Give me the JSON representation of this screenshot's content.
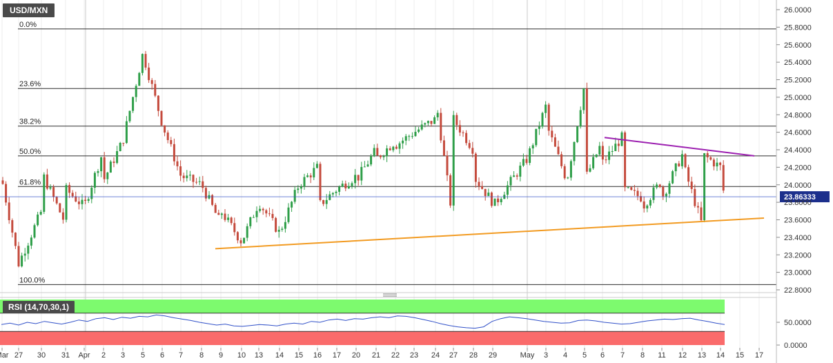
{
  "symbol": "USD/MXN",
  "rsi_label": "RSI (14,70,30,1)",
  "colors": {
    "up": "#2e9e48",
    "down": "#c44a3c",
    "support": "#f29a20",
    "resistance": "#9c1fb0",
    "rsi_line": "#2f4fc8",
    "overbought_fill": "#7dfa6e",
    "oversold_fill": "#fa6b6b"
  },
  "chart_data": [
    {
      "type": "candlestick",
      "title": "USD/MXN",
      "ylim": [
        22.8,
        26.0
      ],
      "y_ticks": [
        "26.0000",
        "25.8000",
        "25.6000",
        "25.4000",
        "25.2000",
        "25.0000",
        "24.8000",
        "24.6000",
        "24.4000",
        "24.2000",
        "24.0000",
        "23.8000",
        "23.6000",
        "23.4000",
        "23.2000",
        "23.0000",
        "22.8000"
      ],
      "x_ticks": [
        "Mar",
        "27",
        "30",
        "31",
        "Apr",
        "2",
        "3",
        "5",
        "6",
        "7",
        "8",
        "9",
        "10",
        "13",
        "14",
        "15",
        "16",
        "17",
        "20",
        "21",
        "22",
        "23",
        "24",
        "27",
        "28",
        "29",
        "May",
        "3",
        "4",
        "5",
        "6",
        "7",
        "8",
        "11",
        "12",
        "13",
        "14",
        "15",
        "17"
      ],
      "last_price": 23.86333,
      "last_price_label": "23.86333",
      "fibonacci_levels": [
        {
          "label": "0.0%",
          "value": 25.78
        },
        {
          "label": "23.6%",
          "value": 25.1
        },
        {
          "label": "38.2%",
          "value": 24.67
        },
        {
          "label": "50.0%",
          "value": 24.33
        },
        {
          "label": "61.8%",
          "value": 23.98
        },
        {
          "label": "100.0%",
          "value": 22.86
        }
      ],
      "trendlines": [
        {
          "name": "support",
          "from": {
            "x": "9",
            "y": 23.27
          },
          "to": {
            "x": "15",
            "y": 23.62
          }
        },
        {
          "name": "resistance",
          "from": {
            "x": "6",
            "y": 24.54
          },
          "to": {
            "x": "14",
            "y": 24.33
          }
        }
      ],
      "close_path": [
        {
          "x": "Mar",
          "y": 24.05
        },
        {
          "x": "27",
          "y": 23.1
        },
        {
          "x": "27",
          "y": 23.55
        },
        {
          "x": "30",
          "y": 23.7
        },
        {
          "x": "30",
          "y": 24.15
        },
        {
          "x": "31",
          "y": 23.55
        },
        {
          "x": "31",
          "y": 23.95
        },
        {
          "x": "Apr",
          "y": 23.75
        },
        {
          "x": "2",
          "y": 24.4
        },
        {
          "x": "2",
          "y": 24.05
        },
        {
          "x": "3",
          "y": 24.5
        },
        {
          "x": "3",
          "y": 24.9
        },
        {
          "x": "5",
          "y": 25.5
        },
        {
          "x": "5",
          "y": 25.15
        },
        {
          "x": "6",
          "y": 24.7
        },
        {
          "x": "6",
          "y": 24.5
        },
        {
          "x": "7",
          "y": 24.1
        },
        {
          "x": "7",
          "y": 24.55
        },
        {
          "x": "8",
          "y": 24.0
        },
        {
          "x": "8",
          "y": 23.85
        },
        {
          "x": "9",
          "y": 23.55
        },
        {
          "x": "9",
          "y": 23.7
        },
        {
          "x": "10",
          "y": 23.35
        },
        {
          "x": "13",
          "y": 23.8
        },
        {
          "x": "13",
          "y": 23.55
        },
        {
          "x": "14",
          "y": 23.45
        },
        {
          "x": "15",
          "y": 24.0
        },
        {
          "x": "15",
          "y": 24.35
        },
        {
          "x": "16",
          "y": 24.2
        },
        {
          "x": "16",
          "y": 23.75
        },
        {
          "x": "17",
          "y": 23.95
        },
        {
          "x": "20",
          "y": 24.1
        },
        {
          "x": "20",
          "y": 24.05
        },
        {
          "x": "21",
          "y": 24.4
        },
        {
          "x": "21",
          "y": 24.3
        },
        {
          "x": "22",
          "y": 24.5
        },
        {
          "x": "22",
          "y": 24.45
        },
        {
          "x": "23",
          "y": 24.6
        },
        {
          "x": "24",
          "y": 24.75
        },
        {
          "x": "24",
          "y": 25.0
        },
        {
          "x": "27",
          "y": 24.9
        },
        {
          "x": "27",
          "y": 24.75
        },
        {
          "x": "28",
          "y": 24.4
        },
        {
          "x": "28",
          "y": 24.1
        },
        {
          "x": "29",
          "y": 23.8
        },
        {
          "x": "29",
          "y": 23.75
        },
        {
          "x": "May",
          "y": 24.3
        },
        {
          "x": "3",
          "y": 24.75
        },
        {
          "x": "3",
          "y": 24.7
        },
        {
          "x": "4",
          "y": 24.1
        },
        {
          "x": "4",
          "y": 23.95
        },
        {
          "x": "5",
          "y": 23.85
        },
        {
          "x": "5",
          "y": 24.05
        },
        {
          "x": "6",
          "y": 24.45
        },
        {
          "x": "6",
          "y": 24.25
        },
        {
          "x": "7",
          "y": 24.0
        },
        {
          "x": "7",
          "y": 23.95
        },
        {
          "x": "8",
          "y": 23.6
        },
        {
          "x": "8",
          "y": 23.75
        },
        {
          "x": "11",
          "y": 24.05
        },
        {
          "x": "11",
          "y": 23.85
        },
        {
          "x": "12",
          "y": 24.35
        },
        {
          "x": "12",
          "y": 24.25
        },
        {
          "x": "13",
          "y": 24.1
        },
        {
          "x": "13",
          "y": 24.35
        },
        {
          "x": "14",
          "y": 24.2
        },
        {
          "x": "14",
          "y": 23.86
        }
      ]
    },
    {
      "type": "line",
      "title": "RSI (14,70,30,1)",
      "ylim": [
        0,
        100
      ],
      "y_ticks": [
        "50.0000",
        "0.0000"
      ],
      "overbought": 70,
      "oversold": 30,
      "series": [
        {
          "values": [
            45,
            48,
            44,
            50,
            47,
            52,
            49,
            46,
            50,
            55,
            52,
            58,
            60,
            56,
            61,
            59,
            63,
            62,
            66,
            64,
            60,
            57,
            54,
            50,
            47,
            44,
            46,
            42,
            41,
            43,
            45,
            44,
            42,
            46,
            48,
            46,
            52,
            50,
            55,
            57,
            54,
            58,
            57,
            60,
            62,
            60,
            64,
            63,
            60,
            56,
            52,
            47,
            43,
            40,
            38,
            37,
            40,
            52,
            58,
            62,
            60,
            58,
            55,
            52,
            50,
            48,
            49,
            54,
            55,
            53,
            50,
            48,
            46,
            47,
            50,
            53,
            55,
            57,
            56,
            58,
            59,
            55,
            52,
            48,
            45
          ]
        }
      ]
    }
  ]
}
